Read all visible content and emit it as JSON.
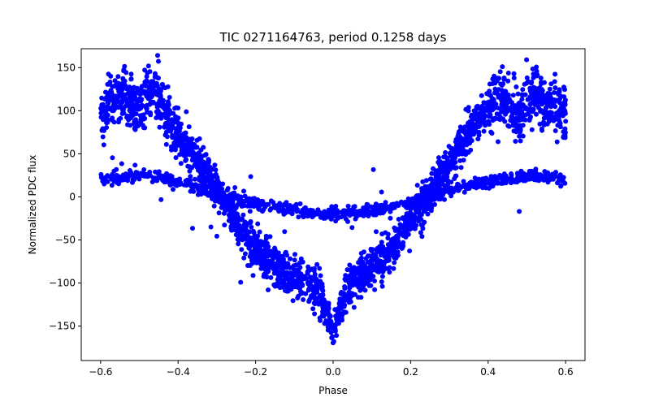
{
  "chart_data": {
    "type": "scatter",
    "title": "TIC 0271164763, period 0.1258 days",
    "xlabel": "Phase",
    "ylabel": "Normalized PDC flux",
    "xlim": [
      -0.65,
      0.65
    ],
    "ylim": [
      -190,
      172
    ],
    "xticks": [
      -0.6,
      -0.4,
      -0.2,
      0.0,
      0.2,
      0.4,
      0.6
    ],
    "xtick_labels": [
      "−0.6",
      "−0.4",
      "−0.2",
      "0.0",
      "0.2",
      "0.4",
      "0.6"
    ],
    "yticks": [
      -150,
      -100,
      -50,
      0,
      50,
      100,
      150
    ],
    "ytick_labels": [
      "−150",
      "−100",
      "−50",
      "0",
      "50",
      "100",
      "150"
    ],
    "grid": false,
    "marker_color": "#0000ff",
    "series": [
      {
        "x": [
          -0.6,
          -0.58,
          -0.56,
          -0.54,
          -0.52,
          -0.5,
          -0.48,
          -0.46,
          -0.44,
          -0.42,
          -0.4,
          -0.38,
          -0.36,
          -0.34,
          -0.32,
          -0.3,
          -0.28,
          -0.26,
          -0.24,
          -0.22,
          -0.2,
          -0.18,
          -0.16,
          -0.14,
          -0.12,
          -0.1,
          -0.08,
          -0.06,
          -0.04,
          -0.02,
          0.0,
          0.02,
          0.04,
          0.06,
          0.08,
          0.1,
          0.12,
          0.14,
          0.16,
          0.18,
          0.2,
          0.22,
          0.24,
          0.26,
          0.28,
          0.3,
          0.32,
          0.34,
          0.36,
          0.38,
          0.4,
          0.42,
          0.44,
          0.46,
          0.48,
          0.5,
          0.52,
          0.54,
          0.56,
          0.58,
          0.6
        ],
        "y": [
          95,
          105,
          112,
          118,
          110,
          100,
          115,
          120,
          105,
          88,
          72,
          60,
          48,
          36,
          22,
          8,
          -8,
          -22,
          -36,
          -50,
          -60,
          -70,
          -78,
          -84,
          -88,
          -92,
          -96,
          -100,
          -108,
          -130,
          -160,
          -125,
          -104,
          -96,
          -90,
          -84,
          -76,
          -66,
          -54,
          -40,
          -28,
          -16,
          -2,
          12,
          26,
          40,
          54,
          66,
          80,
          92,
          104,
          118,
          116,
          102,
          94,
          106,
          120,
          112,
          104,
          100,
          94
        ]
      },
      {
        "x": [
          -0.6,
          -0.56,
          -0.52,
          -0.48,
          -0.44,
          -0.4,
          -0.36,
          -0.32,
          -0.28,
          -0.24,
          -0.2,
          -0.16,
          -0.12,
          -0.08,
          -0.04,
          0.0,
          0.04,
          0.08,
          0.12,
          0.16,
          0.2,
          0.24,
          0.28,
          0.32,
          0.36,
          0.4,
          0.44,
          0.48,
          0.52,
          0.56,
          0.6
        ],
        "y": [
          20,
          22,
          24,
          25,
          23,
          18,
          12,
          6,
          0,
          -4,
          -8,
          -12,
          -15,
          -17,
          -19,
          -20,
          -19,
          -17,
          -14,
          -10,
          -6,
          -2,
          4,
          10,
          15,
          18,
          21,
          23,
          24,
          23,
          20
        ]
      }
    ]
  }
}
